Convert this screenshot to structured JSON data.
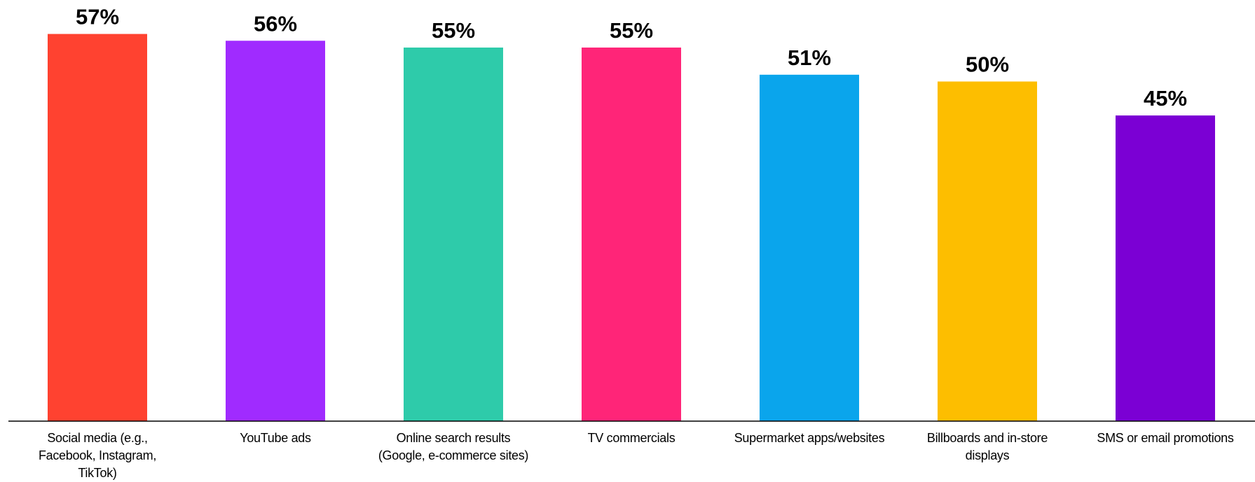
{
  "chart_data": {
    "type": "bar",
    "categories": [
      "Social media (e.g., Facebook, Instagram, TikTok)",
      "YouTube ads",
      "Online search results (Google, e-commerce sites)",
      "TV commercials",
      "Supermarket apps/websites",
      "Billboards and in-store displays",
      "SMS or email promotions"
    ],
    "values": [
      57,
      56,
      55,
      55,
      51,
      50,
      45
    ],
    "value_labels": [
      "57%",
      "56%",
      "55%",
      "55%",
      "51%",
      "50%",
      "45%"
    ],
    "colors": [
      "#ff4230",
      "#a02bff",
      "#2ecbaa",
      "#ff2578",
      "#0aa5ec",
      "#fdbe00",
      "#7b00d4"
    ],
    "ylim": [
      0,
      62
    ]
  }
}
